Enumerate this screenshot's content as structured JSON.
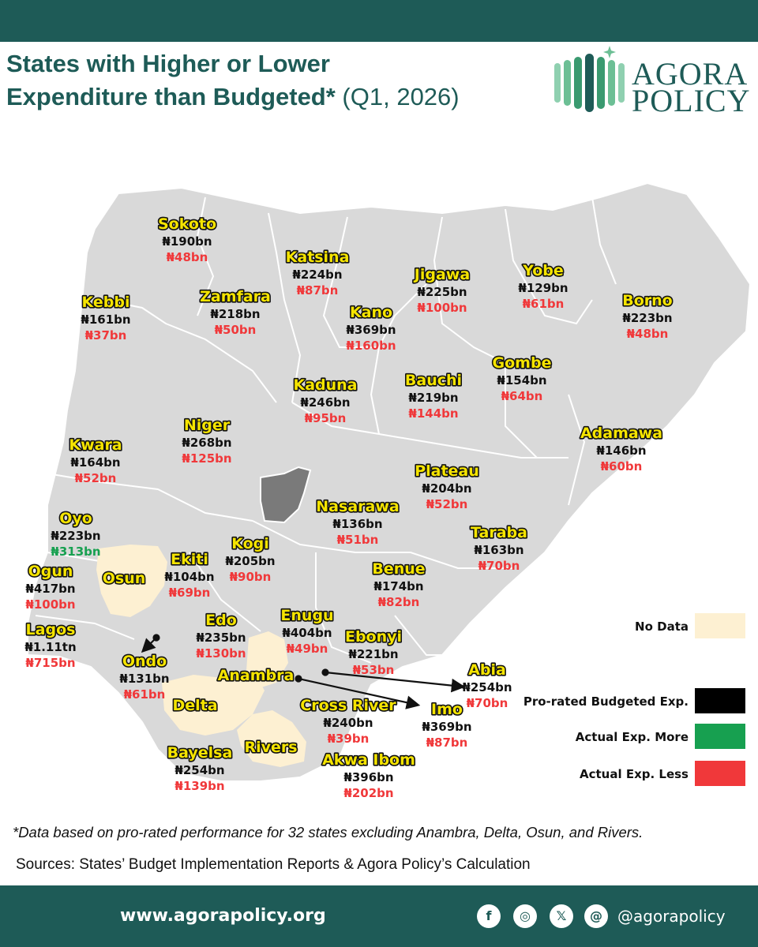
{
  "header": {
    "title_line1": "States with Higher or Lower",
    "title_line2_bold": "Expenditure than Budgeted*",
    "title_line2_light": " (Q1, 2026)"
  },
  "logo": {
    "line1": "AGORA",
    "line2": "POLICY"
  },
  "colors": {
    "brand": "#1e5b57",
    "map_fill": "#d9d9d9",
    "no_data": "#fdf0d2",
    "budgeted": "#000000",
    "more": "#17a050",
    "less": "#f0383a",
    "label_yellow": "#f5e400"
  },
  "states": [
    {
      "name": "Sokoto",
      "budgeted": "₦190bn",
      "actual": "₦48bn",
      "status": "less"
    },
    {
      "name": "Katsina",
      "budgeted": "₦224bn",
      "actual": "₦87bn",
      "status": "less"
    },
    {
      "name": "Jigawa",
      "budgeted": "₦225bn",
      "actual": "₦100bn",
      "status": "less"
    },
    {
      "name": "Yobe",
      "budgeted": "₦129bn",
      "actual": "₦61bn",
      "status": "less"
    },
    {
      "name": "Borno",
      "budgeted": "₦223bn",
      "actual": "₦48bn",
      "status": "less"
    },
    {
      "name": "Kebbi",
      "budgeted": "₦161bn",
      "actual": "₦37bn",
      "status": "less"
    },
    {
      "name": "Zamfara",
      "budgeted": "₦218bn",
      "actual": "₦50bn",
      "status": "less"
    },
    {
      "name": "Kano",
      "budgeted": "₦369bn",
      "actual": "₦160bn",
      "status": "less"
    },
    {
      "name": "Gombe",
      "budgeted": "₦154bn",
      "actual": "₦64bn",
      "status": "less"
    },
    {
      "name": "Kaduna",
      "budgeted": "₦246bn",
      "actual": "₦95bn",
      "status": "less"
    },
    {
      "name": "Bauchi",
      "budgeted": "₦219bn",
      "actual": "₦144bn",
      "status": "less"
    },
    {
      "name": "Niger",
      "budgeted": "₦268bn",
      "actual": "₦125bn",
      "status": "less"
    },
    {
      "name": "Adamawa",
      "budgeted": "₦146bn",
      "actual": "₦60bn",
      "status": "less"
    },
    {
      "name": "Kwara",
      "budgeted": "₦164bn",
      "actual": "₦52bn",
      "status": "less"
    },
    {
      "name": "Plateau",
      "budgeted": "₦204bn",
      "actual": "₦52bn",
      "status": "less"
    },
    {
      "name": "Nasarawa",
      "budgeted": "₦136bn",
      "actual": "₦51bn",
      "status": "less"
    },
    {
      "name": "Oyo",
      "budgeted": "₦223bn",
      "actual": "₦313bn",
      "status": "more"
    },
    {
      "name": "Taraba",
      "budgeted": "₦163bn",
      "actual": "₦70bn",
      "status": "less"
    },
    {
      "name": "Kogi",
      "budgeted": "₦205bn",
      "actual": "₦90bn",
      "status": "less"
    },
    {
      "name": "Ekiti",
      "budgeted": "₦104bn",
      "actual": "₦69bn",
      "status": "less"
    },
    {
      "name": "Ogun",
      "budgeted": "₦417bn",
      "actual": "₦100bn",
      "status": "less"
    },
    {
      "name": "Benue",
      "budgeted": "₦174bn",
      "actual": "₦82bn",
      "status": "less"
    },
    {
      "name": "Edo",
      "budgeted": "₦235bn",
      "actual": "₦130bn",
      "status": "less"
    },
    {
      "name": "Enugu",
      "budgeted": "₦404bn",
      "actual": "₦49bn",
      "status": "less"
    },
    {
      "name": "Lagos",
      "budgeted": "₦1.11tn",
      "actual": "₦715bn",
      "status": "less"
    },
    {
      "name": "Ebonyi",
      "budgeted": "₦221bn",
      "actual": "₦53bn",
      "status": "less"
    },
    {
      "name": "Ondo",
      "budgeted": "₦131bn",
      "actual": "₦61bn",
      "status": "less"
    },
    {
      "name": "Abia",
      "budgeted": "₦254bn",
      "actual": "₦70bn",
      "status": "less"
    },
    {
      "name": "Imo",
      "budgeted": "₦369bn",
      "actual": "₦87bn",
      "status": "less"
    },
    {
      "name": "Cross River",
      "budgeted": "₦240bn",
      "actual": "₦39bn",
      "status": "less"
    },
    {
      "name": "Bayelsa",
      "budgeted": "₦254bn",
      "actual": "₦139bn",
      "status": "less"
    },
    {
      "name": "Akwa Ibom",
      "budgeted": "₦396bn",
      "actual": "₦202bn",
      "status": "less"
    }
  ],
  "no_data_states": [
    "Osun",
    "Anambra",
    "Delta",
    "Rivers"
  ],
  "legend": {
    "no_data": "No Data",
    "budgeted": "Pro-rated Budgeted Exp.",
    "more": "Actual Exp. More",
    "less": "Actual Exp. Less"
  },
  "footnote": "*Data based on pro-rated performance for 32 states excluding Anambra, Delta, Osun,  and Rivers.",
  "sources": "Sources: States’ Budget Implementation Reports & Agora Policy’s Calculation",
  "footer": {
    "website": "www.agorapolicy.org",
    "handle": "@agorapolicy",
    "social_icons": [
      "facebook-icon",
      "instagram-icon",
      "x-icon",
      "threads-icon"
    ]
  }
}
